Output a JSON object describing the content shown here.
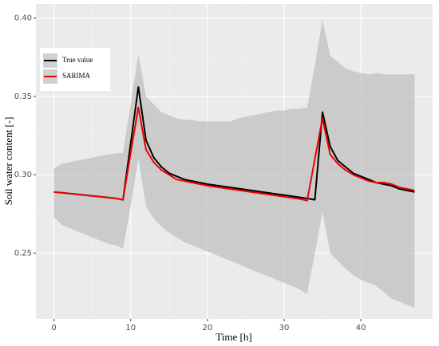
{
  "chart_data": {
    "type": "line",
    "x_label": "Time [h]",
    "y_label": "Soil water content [-]",
    "x": [
      0,
      1,
      2,
      3,
      4,
      5,
      6,
      7,
      8,
      9,
      10,
      11,
      12,
      13,
      14,
      15,
      16,
      17,
      18,
      19,
      20,
      21,
      22,
      23,
      24,
      25,
      26,
      27,
      28,
      29,
      30,
      31,
      32,
      33,
      34,
      35,
      36,
      37,
      38,
      39,
      40,
      41,
      42,
      43,
      44,
      45,
      46,
      47
    ],
    "series": [
      {
        "name": "True value",
        "color": "#000000",
        "values": [
          0.289,
          0.2885,
          0.288,
          0.2875,
          0.287,
          0.2865,
          0.286,
          0.2855,
          0.285,
          0.284,
          0.32,
          0.356,
          0.322,
          0.311,
          0.305,
          0.301,
          0.299,
          0.297,
          0.296,
          0.295,
          0.294,
          0.2933,
          0.2926,
          0.2919,
          0.2912,
          0.2905,
          0.2898,
          0.2891,
          0.2884,
          0.2877,
          0.287,
          0.2863,
          0.2856,
          0.2849,
          0.284,
          0.34,
          0.318,
          0.309,
          0.305,
          0.301,
          0.299,
          0.297,
          0.295,
          0.294,
          0.293,
          0.291,
          0.29,
          0.289
        ]
      },
      {
        "name": "SARIMA",
        "color": "#ee0000",
        "values": [
          0.289,
          0.2885,
          0.288,
          0.2875,
          0.287,
          0.2865,
          0.286,
          0.2855,
          0.285,
          0.284,
          0.314,
          0.343,
          0.316,
          0.308,
          0.303,
          0.3,
          0.297,
          0.296,
          0.295,
          0.294,
          0.293,
          0.2923,
          0.2916,
          0.2909,
          0.2902,
          0.2895,
          0.2888,
          0.2881,
          0.2874,
          0.2867,
          0.286,
          0.2853,
          0.2846,
          0.2835,
          0.31,
          0.336,
          0.313,
          0.307,
          0.303,
          0.3,
          0.298,
          0.296,
          0.295,
          0.295,
          0.294,
          0.292,
          0.291,
          0.29
        ]
      }
    ],
    "band": {
      "color": "#bdbdbd",
      "upper": [
        0.304,
        0.307,
        0.308,
        0.309,
        0.31,
        0.311,
        0.312,
        0.313,
        0.3135,
        0.314,
        0.345,
        0.377,
        0.35,
        0.345,
        0.34,
        0.338,
        0.336,
        0.335,
        0.335,
        0.334,
        0.334,
        0.334,
        0.334,
        0.334,
        0.336,
        0.337,
        0.338,
        0.339,
        0.34,
        0.341,
        0.341,
        0.342,
        0.342,
        0.343,
        0.37,
        0.399,
        0.376,
        0.372,
        0.368,
        0.366,
        0.365,
        0.364,
        0.365,
        0.364,
        0.364,
        0.364,
        0.364,
        0.364
      ],
      "lower": [
        0.273,
        0.268,
        0.266,
        0.264,
        0.262,
        0.26,
        0.258,
        0.256,
        0.255,
        0.253,
        0.28,
        0.31,
        0.28,
        0.272,
        0.267,
        0.263,
        0.26,
        0.257,
        0.255,
        0.253,
        0.251,
        0.249,
        0.247,
        0.245,
        0.243,
        0.241,
        0.239,
        0.237,
        0.235,
        0.233,
        0.231,
        0.229,
        0.227,
        0.224,
        0.25,
        0.276,
        0.25,
        0.245,
        0.24,
        0.236,
        0.233,
        0.231,
        0.229,
        0.225,
        0.221,
        0.219,
        0.217,
        0.215
      ]
    },
    "xlim": [
      -2.35,
      49.35
    ],
    "ylim": [
      0.208,
      0.409
    ],
    "xticks": [
      0,
      10,
      20,
      30,
      40
    ],
    "yticks": [
      {
        "value": 0.25,
        "label": "0.25"
      },
      {
        "value": 0.3,
        "label": "0.30"
      },
      {
        "value": 0.35,
        "label": "0.35"
      },
      {
        "value": 0.4,
        "label": "0.40"
      }
    ],
    "grid": true,
    "legend": "top-left"
  }
}
